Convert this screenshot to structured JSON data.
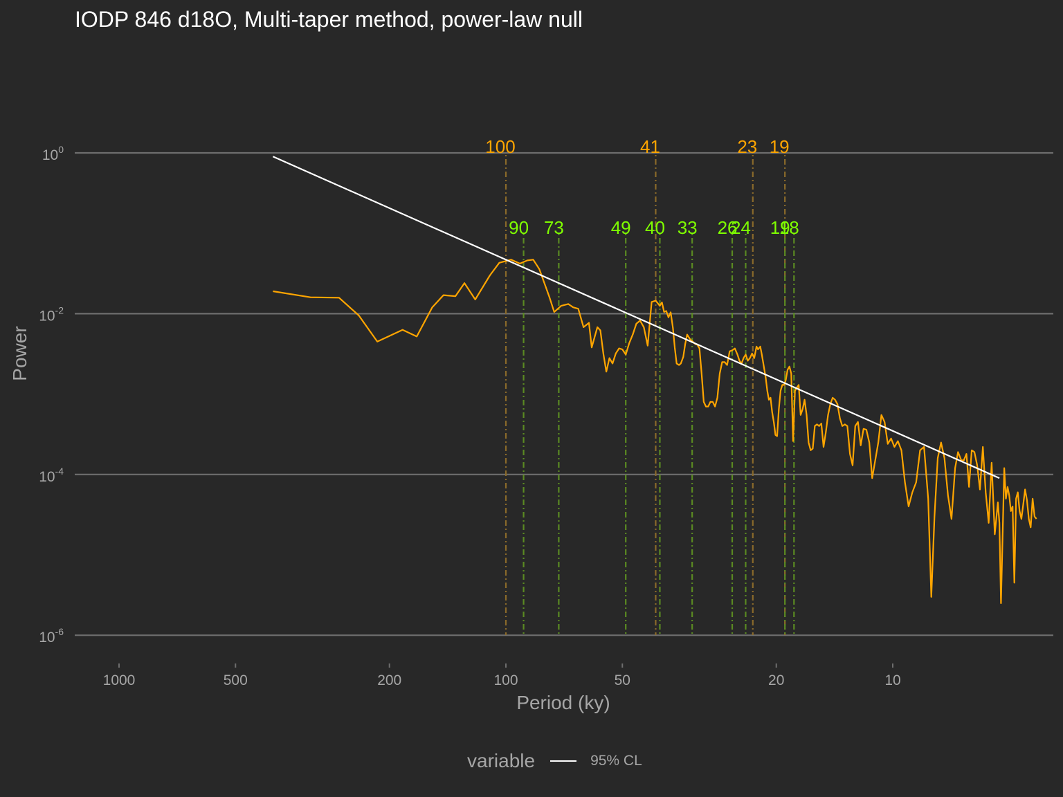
{
  "chart_data": {
    "type": "line",
    "title": "IODP 846 d18O, Multi-taper method, power-law null",
    "xlabel": "Period (ky)",
    "ylabel": "Power",
    "x_scale": "log, reversed",
    "y_scale": "log",
    "xlim": [
      1000,
      5
    ],
    "ylim": [
      1e-06,
      1
    ],
    "x_ticks": [
      {
        "value": 1000,
        "label": "1000"
      },
      {
        "value": 500,
        "label": "500"
      },
      {
        "value": 200,
        "label": "200"
      },
      {
        "value": 100,
        "label": "100"
      },
      {
        "value": 50,
        "label": "50"
      },
      {
        "value": 20,
        "label": "20"
      },
      {
        "value": 10,
        "label": "10"
      }
    ],
    "y_ticks": [
      {
        "value": 1,
        "base": "10",
        "exp": "0"
      },
      {
        "value": 0.01,
        "base": "10",
        "exp": "-2"
      },
      {
        "value": 0.0001,
        "base": "10",
        "exp": "-4"
      },
      {
        "value": 1e-06,
        "base": "10",
        "exp": "-6"
      }
    ],
    "grid": "horizontal major lines",
    "legend": {
      "position": "bottom",
      "title": "variable",
      "entries": [
        "95% CL"
      ]
    },
    "colors": {
      "background": "#282828",
      "grid": "#6e6e6e",
      "spectrum": "#ffa500",
      "null_line": "#ffffff",
      "orbital_marker": "#ffa500",
      "peak_marker": "#7fff00",
      "axis_text": "#a6a6a6"
    },
    "orbital_periods": [
      {
        "period": 100,
        "label": "100"
      },
      {
        "period": 41,
        "label": "41"
      },
      {
        "period": 23,
        "label": "23"
      },
      {
        "period": 19,
        "label": "19"
      }
    ],
    "peak_periods": [
      {
        "period": 90,
        "label": "90"
      },
      {
        "period": 73,
        "label": "73"
      },
      {
        "period": 49,
        "label": "49"
      },
      {
        "period": 40,
        "label": "40"
      },
      {
        "period": 33,
        "label": "33"
      },
      {
        "period": 26,
        "label": "26"
      },
      {
        "period": 24,
        "label": "24"
      },
      {
        "period": 19,
        "label": "19"
      },
      {
        "period": 18,
        "label": "18"
      }
    ],
    "series": [
      {
        "name": "95% CL",
        "color": "#ffffff",
        "points": [
          [
            400,
            0.9
          ],
          [
            5.3,
            9e-05
          ]
        ]
      },
      {
        "color": "#ffa500",
        "points": [
          [
            400,
            0.019
          ],
          [
            320,
            0.016
          ],
          [
            270,
            0.0158
          ],
          [
            240,
            0.0095
          ],
          [
            215,
            0.0045
          ],
          [
            185,
            0.0063
          ],
          [
            170,
            0.0052
          ],
          [
            155,
            0.012
          ],
          [
            145,
            0.017
          ],
          [
            135,
            0.0165
          ],
          [
            128,
            0.024
          ],
          [
            120,
            0.015
          ],
          [
            110,
            0.03
          ],
          [
            104,
            0.043
          ],
          [
            97,
            0.047
          ],
          [
            92,
            0.042
          ],
          [
            88,
            0.046
          ],
          [
            85,
            0.047
          ],
          [
            82,
            0.036
          ],
          [
            79,
            0.022
          ],
          [
            77,
            0.0155
          ],
          [
            75,
            0.0105
          ],
          [
            72,
            0.0125
          ],
          [
            69,
            0.0132
          ],
          [
            67,
            0.012
          ],
          [
            65,
            0.0115
          ],
          [
            63,
            0.0068
          ],
          [
            61,
            0.0077
          ],
          [
            60,
            0.0038
          ],
          [
            58,
            0.0068
          ],
          [
            57,
            0.0062
          ],
          [
            56,
            0.0032
          ],
          [
            55,
            0.0019
          ],
          [
            54,
            0.0028
          ],
          [
            53,
            0.0024
          ],
          [
            52,
            0.0032
          ],
          [
            51,
            0.0037
          ],
          [
            50,
            0.0036
          ],
          [
            49,
            0.0031
          ],
          [
            48,
            0.0043
          ],
          [
            47,
            0.0055
          ],
          [
            46,
            0.0075
          ],
          [
            45,
            0.0082
          ],
          [
            44,
            0.0068
          ],
          [
            43,
            0.004
          ],
          [
            42,
            0.014
          ],
          [
            41,
            0.0145
          ],
          [
            40,
            0.0125
          ],
          [
            39.5,
            0.0138
          ],
          [
            39,
            0.0105
          ],
          [
            38.5,
            0.0108
          ],
          [
            38,
            0.009
          ],
          [
            37.5,
            0.0104
          ],
          [
            37,
            0.0066
          ],
          [
            36.6,
            0.0038
          ],
          [
            36.2,
            0.0024
          ],
          [
            35.7,
            0.0023
          ],
          [
            35.3,
            0.0024
          ],
          [
            34.8,
            0.0029
          ],
          [
            34.4,
            0.0042
          ],
          [
            34,
            0.0055
          ],
          [
            33.4,
            0.0048
          ],
          [
            32.9,
            0.0045
          ],
          [
            32.4,
            0.0042
          ],
          [
            32,
            0.0041
          ],
          [
            31.6,
            0.0037
          ],
          [
            31.2,
            0.0018
          ],
          [
            30.8,
            0.0008
          ],
          [
            30.4,
            0.0007
          ],
          [
            30,
            0.0007
          ],
          [
            29.6,
            0.0008
          ],
          [
            29.2,
            0.0008
          ],
          [
            28.8,
            0.0007
          ],
          [
            28.4,
            0.0009
          ],
          [
            28,
            0.0018
          ],
          [
            27.6,
            0.0025
          ],
          [
            27.2,
            0.0025
          ],
          [
            26.8,
            0.0023
          ],
          [
            26.4,
            0.0034
          ],
          [
            26,
            0.0035
          ],
          [
            25.6,
            0.0037
          ],
          [
            25.2,
            0.0031
          ],
          [
            24.9,
            0.0026
          ],
          [
            24.6,
            0.0024
          ],
          [
            24.3,
            0.0028
          ],
          [
            24,
            0.0031
          ],
          [
            23.7,
            0.0026
          ],
          [
            23.4,
            0.0028
          ],
          [
            23.1,
            0.0032
          ],
          [
            22.8,
            0.0028
          ],
          [
            22.5,
            0.0039
          ],
          [
            22.3,
            0.0036
          ],
          [
            22,
            0.0039
          ],
          [
            21.8,
            0.0031
          ],
          [
            21.6,
            0.0024
          ],
          [
            21.3,
            0.0016
          ],
          [
            21.1,
            0.0011
          ],
          [
            20.9,
            0.00085
          ],
          [
            20.7,
            0.0009
          ],
          [
            20.5,
            0.0006
          ],
          [
            20.3,
            0.00045
          ],
          [
            20.1,
            0.00031
          ],
          [
            19.9,
            0.0003
          ],
          [
            19.7,
            0.00065
          ],
          [
            19.5,
            0.0011
          ],
          [
            19.3,
            0.0013
          ],
          [
            19.1,
            0.0013
          ],
          [
            18.9,
            0.0015
          ],
          [
            18.7,
            0.002
          ],
          [
            18.5,
            0.0022
          ],
          [
            18.3,
            0.0018
          ],
          [
            18.1,
            0.00026
          ],
          [
            17.9,
            0.0011
          ],
          [
            17.7,
            0.0012
          ],
          [
            17.5,
            0.0013
          ],
          [
            17.3,
            0.00055
          ],
          [
            17.1,
            0.00065
          ],
          [
            16.9,
            0.00085
          ],
          [
            16.7,
            0.00055
          ],
          [
            16.5,
            0.00025
          ],
          [
            16.3,
            0.0002
          ],
          [
            16.1,
            0.00021
          ],
          [
            15.9,
            0.0004
          ],
          [
            15.7,
            0.00042
          ],
          [
            15.5,
            0.0004
          ],
          [
            15.3,
            0.00043
          ],
          [
            15.1,
            0.00022
          ],
          [
            14.9,
            0.00033
          ],
          [
            14.7,
            0.00055
          ],
          [
            14.5,
            0.00075
          ],
          [
            14.3,
            0.0009
          ],
          [
            14.1,
            0.00085
          ],
          [
            13.9,
            0.00075
          ],
          [
            13.7,
            0.0005
          ],
          [
            13.5,
            0.0004
          ],
          [
            13.3,
            0.00042
          ],
          [
            13.1,
            0.0004
          ],
          [
            12.9,
            0.00018
          ],
          [
            12.7,
            0.00013
          ],
          [
            12.5,
            0.0004
          ],
          [
            12.3,
            0.00045
          ],
          [
            12.1,
            0.00023
          ],
          [
            11.9,
            0.00037
          ],
          [
            11.7,
            0.00036
          ],
          [
            11.5,
            0.00025
          ],
          [
            11.3,
            9e-05
          ],
          [
            11.1,
            0.00015
          ],
          [
            10.9,
            0.00025
          ],
          [
            10.7,
            0.00055
          ],
          [
            10.5,
            0.00045
          ],
          [
            10.3,
            0.00024
          ],
          [
            10.1,
            0.00028
          ],
          [
            9.9,
            0.00022
          ],
          [
            9.7,
            0.00026
          ],
          [
            9.5,
            0.0002
          ],
          [
            9.3,
            8e-05
          ],
          [
            9.1,
            4e-05
          ],
          [
            8.9,
            6e-05
          ],
          [
            8.7,
            8e-05
          ],
          [
            8.5,
            0.0002
          ],
          [
            8.3,
            0.00022
          ],
          [
            8.1,
            5e-05
          ],
          [
            7.95,
            3e-06
          ],
          [
            7.8,
            3e-05
          ],
          [
            7.65,
            0.00016
          ],
          [
            7.5,
            0.00025
          ],
          [
            7.35,
            0.00016
          ],
          [
            7.2,
            5.5e-05
          ],
          [
            7.05,
            2.8e-05
          ],
          [
            6.9,
            0.00012
          ],
          [
            6.78,
            0.00019
          ],
          [
            6.65,
            0.00015
          ],
          [
            6.55,
            0.00015
          ],
          [
            6.45,
            0.00018
          ],
          [
            6.35,
            7e-05
          ],
          [
            6.25,
            0.0002
          ],
          [
            6.15,
            0.00019
          ],
          [
            6.05,
            0.00013
          ],
          [
            5.95,
            6.5e-05
          ],
          [
            5.85,
            0.00022
          ],
          [
            5.75,
            6e-05
          ],
          [
            5.65,
            2.5e-05
          ],
          [
            5.55,
            0.00014
          ],
          [
            5.45,
            1.8e-05
          ],
          [
            5.35,
            4.5e-05
          ],
          [
            5.3,
            2.5e-05
          ],
          [
            5.25,
            2.5e-06
          ],
          [
            5.2,
            1.8e-05
          ],
          [
            5.15,
            0.00012
          ],
          [
            5.1,
            5e-05
          ],
          [
            5.05,
            7e-05
          ],
          [
            5.0,
            5.5e-05
          ],
          [
            4.95,
            3.5e-05
          ],
          [
            4.9,
            4e-05
          ],
          [
            4.85,
            4.5e-06
          ],
          [
            4.8,
            5e-05
          ],
          [
            4.75,
            6e-05
          ],
          [
            4.7,
            3.5e-05
          ],
          [
            4.65,
            2.8e-05
          ],
          [
            4.6,
            4.2e-05
          ],
          [
            4.55,
            6.5e-05
          ],
          [
            4.5,
            4.8e-05
          ],
          [
            4.45,
            2.8e-05
          ],
          [
            4.4,
            2.2e-05
          ],
          [
            4.35,
            5e-05
          ],
          [
            4.3,
            3e-05
          ],
          [
            4.25,
            2.8e-05
          ]
        ]
      }
    ]
  }
}
